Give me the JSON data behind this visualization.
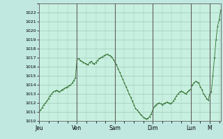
{
  "bg_color": "#c0e8e0",
  "plot_bg_color": "#c8f0e0",
  "line_color": "#2d6e2d",
  "marker_color": "#2d6e2d",
  "grid_color": "#a0c8b8",
  "vline_color": "#606060",
  "ylim": [
    1010,
    1023
  ],
  "yticks": [
    1010,
    1011,
    1012,
    1013,
    1014,
    1015,
    1016,
    1017,
    1018,
    1019,
    1020,
    1021,
    1022
  ],
  "xtick_labels": [
    "Jeu",
    "Ven",
    "Sam",
    "Dim",
    "Lun",
    "M"
  ],
  "xtick_positions": [
    0,
    24,
    48,
    72,
    96,
    108
  ],
  "vline_positions": [
    0,
    24,
    48,
    72,
    96,
    108
  ],
  "pressure_values": [
    1011.0,
    1011.2,
    1011.5,
    1011.8,
    1012.0,
    1012.2,
    1012.5,
    1012.8,
    1013.0,
    1013.2,
    1013.3,
    1013.4,
    1013.3,
    1013.2,
    1013.4,
    1013.5,
    1013.6,
    1013.7,
    1013.8,
    1013.9,
    1014.0,
    1014.2,
    1014.5,
    1014.8,
    1016.8,
    1016.9,
    1016.7,
    1016.6,
    1016.5,
    1016.4,
    1016.3,
    1016.2,
    1016.5,
    1016.6,
    1016.4,
    1016.3,
    1016.5,
    1016.7,
    1016.9,
    1017.0,
    1017.1,
    1017.2,
    1017.3,
    1017.4,
    1017.3,
    1017.2,
    1017.1,
    1016.8,
    1016.5,
    1016.2,
    1015.8,
    1015.4,
    1015.0,
    1014.6,
    1014.2,
    1013.8,
    1013.4,
    1013.0,
    1012.6,
    1012.2,
    1011.8,
    1011.4,
    1011.2,
    1011.0,
    1010.8,
    1010.6,
    1010.4,
    1010.3,
    1010.2,
    1010.3,
    1010.5,
    1010.8,
    1011.2,
    1011.6,
    1011.8,
    1011.9,
    1012.0,
    1011.9,
    1011.8,
    1011.9,
    1012.0,
    1012.1,
    1012.0,
    1011.9,
    1012.0,
    1012.2,
    1012.5,
    1012.8,
    1013.0,
    1013.2,
    1013.3,
    1013.2,
    1013.1,
    1013.0,
    1013.2,
    1013.4,
    1013.5,
    1014.0,
    1014.2,
    1014.4,
    1014.3,
    1014.2,
    1013.8,
    1013.5,
    1013.0,
    1012.8,
    1012.5,
    1012.3,
    1013.0,
    1013.2,
    1015.0,
    1017.0,
    1019.0,
    1020.5,
    1021.2,
    1022.3
  ]
}
